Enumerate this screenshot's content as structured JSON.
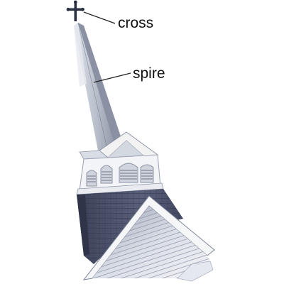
{
  "labels": {
    "cross": "cross",
    "spire": "spire"
  },
  "colors": {
    "background": "#ffffff",
    "label_text": "#111111",
    "leader_line": "#222222",
    "spire_light": "#c7ccd6",
    "spire_mid": "#9aa2b1",
    "spire_dark": "#6f7686",
    "shingles_dark": "#4a5067",
    "trim_white": "#f2f2f2",
    "siding_light": "#eef0f4",
    "cross_dark": "#2a3040"
  }
}
